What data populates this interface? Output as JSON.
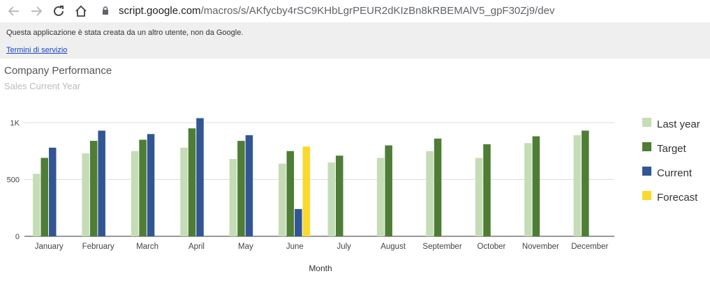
{
  "browser": {
    "url_host": "script.google.com",
    "url_path": "/macros/s/AKfycby4rSC9KHbLgrPEUR2dKIzBn8kRBEMAlV5_gpF30Zj9/dev"
  },
  "banner": {
    "message": "Questa applicazione è stata creata da un altro utente, non da Google.",
    "link": "Termini di servizio"
  },
  "colors": {
    "last_year": "#c5ddb6",
    "target": "#4e7d35",
    "current": "#325694",
    "forecast": "#fad82e"
  },
  "chart_data": {
    "type": "bar",
    "title": "Company Performance",
    "subtitle": "Sales Current Year",
    "xlabel": "Month",
    "ylabel": "",
    "ylim": [
      0,
      1000
    ],
    "yticks": [
      {
        "value": 0,
        "label": "0"
      },
      {
        "value": 500,
        "label": "500"
      },
      {
        "value": 1000,
        "label": "1K"
      }
    ],
    "grid": true,
    "legend_position": "right",
    "categories": [
      "January",
      "February",
      "March",
      "April",
      "May",
      "June",
      "July",
      "August",
      "September",
      "October",
      "November",
      "December"
    ],
    "series": [
      {
        "name": "Last year",
        "color": "#c5ddb6",
        "values": [
          550,
          730,
          750,
          780,
          680,
          640,
          650,
          690,
          750,
          690,
          820,
          890
        ]
      },
      {
        "name": "Target",
        "color": "#4e7d35",
        "values": [
          690,
          840,
          850,
          950,
          840,
          750,
          710,
          800,
          860,
          810,
          880,
          930
        ]
      },
      {
        "name": "Current",
        "color": "#325694",
        "values": [
          780,
          930,
          900,
          1040,
          890,
          240,
          null,
          null,
          null,
          null,
          null,
          null
        ]
      },
      {
        "name": "Forecast",
        "color": "#fad82e",
        "values": [
          null,
          null,
          null,
          null,
          null,
          790,
          null,
          null,
          null,
          null,
          null,
          null
        ]
      }
    ]
  }
}
